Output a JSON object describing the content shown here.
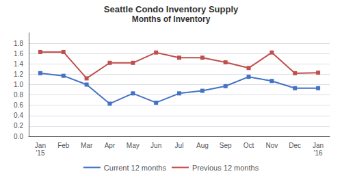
{
  "chart_data": {
    "type": "line",
    "title": "Seattle Condo Inventory Supply",
    "subtitle": "Months of Inventory",
    "categories": [
      "Jan\n'15",
      "Feb",
      "Mar",
      "Apr",
      "May",
      "Jun",
      "Jul",
      "Aug",
      "Sep",
      "Oct",
      "Nov",
      "Dec",
      "Jan\n'16"
    ],
    "series": [
      {
        "name": "Current 12 months",
        "color": "#4472C4",
        "marker": "square",
        "values": [
          1.22,
          1.17,
          1.0,
          0.63,
          0.83,
          0.65,
          0.83,
          0.88,
          0.97,
          1.15,
          1.07,
          0.93,
          0.93
        ]
      },
      {
        "name": "Previous 12 months",
        "color": "#C0504D",
        "marker": "square",
        "values": [
          1.63,
          1.63,
          1.12,
          1.42,
          1.42,
          1.62,
          1.52,
          1.52,
          1.43,
          1.32,
          1.62,
          1.22,
          1.23
        ]
      }
    ],
    "ylim": [
      0.0,
      2.0
    ],
    "yticks": [
      {
        "value": 0.0,
        "label": "0.0"
      },
      0.2,
      0.4,
      0.6,
      0.8,
      {
        "value": 1.0,
        "label": "1.0"
      },
      1.2,
      1.4,
      1.6,
      1.8
    ],
    "grid": true,
    "legend": "bottom"
  }
}
